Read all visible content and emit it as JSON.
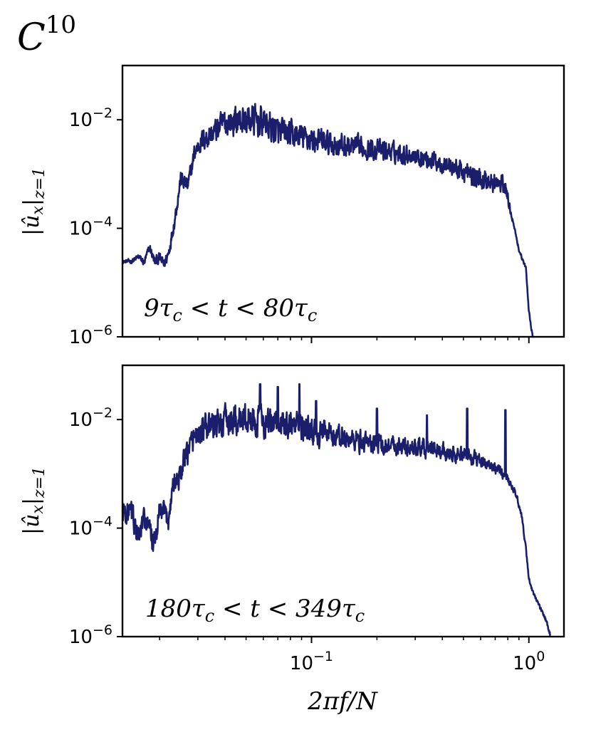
{
  "figure_label": {
    "base": "C",
    "sup": "10"
  },
  "colors": {
    "line": "#1b1f6b",
    "axes": "#000000"
  },
  "chart_data": [
    {
      "type": "line",
      "title": "",
      "annotation": "9τc < t < 80τc",
      "annotation_parts": [
        "9τ",
        "c",
        " < t < 80τ",
        "c"
      ],
      "ylabel": "|ûx|z=1",
      "ylabel_parts": [
        "|û",
        "x",
        "|",
        "z=1"
      ],
      "xlabel": "",
      "xscale": "log",
      "yscale": "log",
      "xlim": [
        0.0135,
        1.45
      ],
      "ylim": [
        1e-06,
        0.1
      ],
      "xticks": [
        {
          "value": 0.1,
          "label": "10−1"
        },
        {
          "value": 1,
          "label": "100"
        }
      ],
      "xtick_labels_visible": false,
      "yticks": [
        {
          "value": 1e-06,
          "label": "10−6"
        },
        {
          "value": 0.0001,
          "label": "10−4"
        },
        {
          "value": 0.01,
          "label": "10−2"
        }
      ],
      "grid": false,
      "series": [
        {
          "color": "#1b1f6b",
          "anchors": [
            [
              0.0135,
              2.4e-05
            ],
            [
              0.015,
              2.5e-05
            ],
            [
              0.016,
              3e-05
            ],
            [
              0.017,
              2.3e-05
            ],
            [
              0.018,
              4.5e-05
            ],
            [
              0.019,
              2.4e-05
            ],
            [
              0.02,
              2.8e-05
            ],
            [
              0.021,
              2.2e-05
            ],
            [
              0.022,
              3.5e-05
            ],
            [
              0.0235,
              0.00015
            ],
            [
              0.025,
              0.0008
            ],
            [
              0.027,
              0.0006
            ],
            [
              0.029,
              0.0025
            ],
            [
              0.031,
              0.004
            ],
            [
              0.035,
              0.0055
            ],
            [
              0.04,
              0.009
            ],
            [
              0.05,
              0.01
            ],
            [
              0.06,
              0.009
            ],
            [
              0.07,
              0.006
            ],
            [
              0.08,
              0.0052
            ],
            [
              0.1,
              0.0044
            ],
            [
              0.13,
              0.0034
            ],
            [
              0.2,
              0.0028
            ],
            [
              0.3,
              0.0022
            ],
            [
              0.4,
              0.0016
            ],
            [
              0.5,
              0.0011
            ],
            [
              0.6,
              0.0008
            ],
            [
              0.72,
              0.00065
            ],
            [
              0.78,
              0.0006
            ],
            [
              0.8,
              0.00035
            ],
            [
              0.86,
              0.0001
            ],
            [
              0.9,
              4e-05
            ],
            [
              0.94,
              2.5e-05
            ],
            [
              0.97,
              1.8e-05
            ],
            [
              1.0,
              3e-06
            ],
            [
              1.06,
              6e-07
            ]
          ],
          "noise": [
            [
              0.0135,
              0.04
            ],
            [
              0.028,
              0.25
            ],
            [
              0.05,
              0.45
            ],
            [
              0.1,
              0.35
            ],
            [
              0.3,
              0.25
            ],
            [
              0.75,
              0.3
            ],
            [
              0.85,
              0.05
            ]
          ]
        }
      ]
    },
    {
      "type": "line",
      "title": "",
      "annotation": "180τc < t < 349τc",
      "annotation_parts": [
        "180τ",
        "c",
        " < t < 349τ",
        "c"
      ],
      "ylabel": "|ûx|z=1",
      "ylabel_parts": [
        "|û",
        "x",
        "|",
        "z=1"
      ],
      "xlabel": "2πf/N",
      "xscale": "log",
      "yscale": "log",
      "xlim": [
        0.0135,
        1.45
      ],
      "ylim": [
        1e-06,
        0.1
      ],
      "xticks": [
        {
          "value": 0.1,
          "label": "10−1"
        },
        {
          "value": 1,
          "label": "100"
        }
      ],
      "xtick_labels_visible": true,
      "yticks": [
        {
          "value": 1e-06,
          "label": "10−6"
        },
        {
          "value": 0.0001,
          "label": "10−4"
        },
        {
          "value": 0.01,
          "label": "10−2"
        }
      ],
      "grid": false,
      "series": [
        {
          "color": "#1b1f6b",
          "anchors": [
            [
              0.0135,
              0.0002
            ],
            [
              0.015,
              0.00018
            ],
            [
              0.016,
              6e-05
            ],
            [
              0.017,
              0.00015
            ],
            [
              0.018,
              9e-05
            ],
            [
              0.019,
              5e-05
            ],
            [
              0.02,
              0.0002
            ],
            [
              0.022,
              0.00015
            ],
            [
              0.023,
              0.0006
            ],
            [
              0.025,
              0.001
            ],
            [
              0.027,
              0.0025
            ],
            [
              0.029,
              0.005
            ],
            [
              0.033,
              0.007
            ],
            [
              0.04,
              0.009
            ],
            [
              0.05,
              0.01
            ],
            [
              0.06,
              0.009
            ],
            [
              0.08,
              0.008
            ],
            [
              0.1,
              0.006
            ],
            [
              0.15,
              0.0043
            ],
            [
              0.2,
              0.0036
            ],
            [
              0.3,
              0.003
            ],
            [
              0.4,
              0.0026
            ],
            [
              0.5,
              0.0022
            ],
            [
              0.6,
              0.0018
            ],
            [
              0.7,
              0.0013
            ],
            [
              0.8,
              0.00085
            ],
            [
              0.88,
              0.0004
            ],
            [
              0.93,
              0.00015
            ],
            [
              0.97,
              4e-05
            ],
            [
              1.0,
              1.2e-05
            ],
            [
              1.05,
              6e-06
            ],
            [
              1.12,
              3.5e-06
            ],
            [
              1.2,
              2e-06
            ],
            [
              1.26,
              1e-06
            ]
          ],
          "noise": [
            [
              0.0135,
              0.35
            ],
            [
              0.025,
              0.35
            ],
            [
              0.05,
              0.45
            ],
            [
              0.1,
              0.35
            ],
            [
              0.3,
              0.25
            ],
            [
              0.6,
              0.2
            ],
            [
              0.85,
              0.1
            ],
            [
              1.0,
              0.06
            ]
          ],
          "spikes": [
            [
              0.058,
              0.045
            ],
            [
              0.07,
              0.04
            ],
            [
              0.088,
              0.045
            ],
            [
              0.105,
              0.022
            ],
            [
              0.2,
              0.016
            ],
            [
              0.34,
              0.012
            ],
            [
              0.52,
              0.016
            ],
            [
              0.78,
              0.015
            ]
          ]
        }
      ]
    }
  ]
}
